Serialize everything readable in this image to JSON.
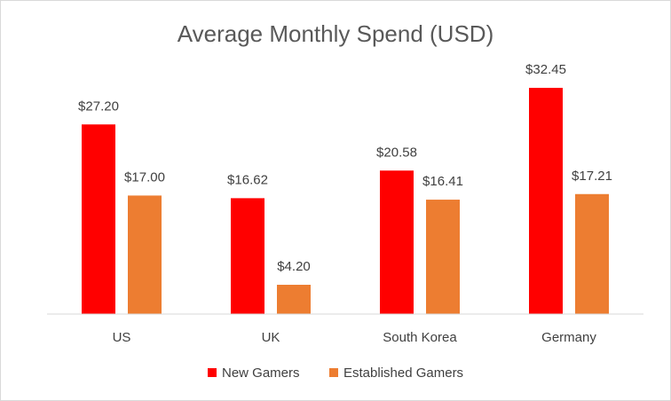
{
  "chart_data": {
    "type": "bar",
    "title": "Average Monthly Spend (USD)",
    "xlabel": "",
    "ylabel": "",
    "categories": [
      "US",
      "UK",
      "South Korea",
      "Germany"
    ],
    "series": [
      {
        "name": "New Gamers",
        "color": "#ff0000",
        "values": [
          27.2,
          16.62,
          20.58,
          32.45
        ],
        "labels": [
          "$27.20",
          "$16.62",
          "$20.58",
          "$32.45"
        ]
      },
      {
        "name": "Established Gamers",
        "color": "#ed7d31",
        "values": [
          17.0,
          4.2,
          16.41,
          17.21
        ],
        "labels": [
          "$17.00",
          "$4.20",
          "$16.41",
          "$17.21"
        ]
      }
    ],
    "ylim": [
      0,
      32.45
    ],
    "grid": false,
    "legend_position": "bottom"
  }
}
